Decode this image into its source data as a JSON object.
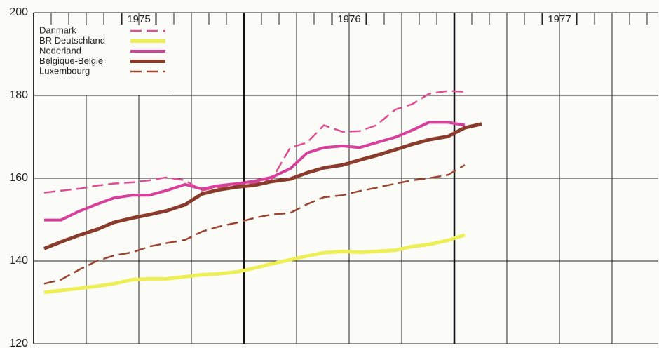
{
  "chart_data": {
    "type": "line",
    "x": [
      1975.05,
      1975.13,
      1975.22,
      1975.3,
      1975.38,
      1975.47,
      1975.55,
      1975.63,
      1975.72,
      1975.8,
      1975.88,
      1975.97,
      1976.05,
      1976.13,
      1976.22,
      1976.3,
      1976.38,
      1976.47,
      1976.55,
      1976.63,
      1976.72,
      1976.8,
      1976.88,
      1976.97,
      1977.05,
      1977.13
    ],
    "series": [
      {
        "name": "Danmark",
        "color": "#dc4f93",
        "dashed": true,
        "width": 2.5,
        "values": [
          156.5,
          157.0,
          157.5,
          158.2,
          158.7,
          159.0,
          159.5,
          160.2,
          159.5,
          157.0,
          157.9,
          158.3,
          158.8,
          159.5,
          167.4,
          168.6,
          172.8,
          171.2,
          171.4,
          172.8,
          176.6,
          177.9,
          180.4,
          181.1,
          180.9,
          null
        ]
      },
      {
        "name": "BR Deutschland",
        "color": "#eeee55",
        "dashed": false,
        "width": 5,
        "values": [
          132.4,
          132.9,
          133.4,
          133.9,
          134.5,
          135.5,
          135.7,
          135.7,
          136.2,
          136.7,
          136.9,
          137.4,
          138.3,
          139.3,
          140.3,
          141.2,
          142.0,
          142.3,
          142.1,
          142.3,
          142.6,
          143.5,
          144.0,
          145.0,
          146.3,
          null
        ]
      },
      {
        "name": "Nederland",
        "color": "#d6409b",
        "dashed": false,
        "width": 4,
        "values": [
          149.9,
          149.9,
          152.1,
          153.7,
          155.2,
          155.9,
          155.9,
          157.0,
          158.5,
          157.4,
          158.2,
          158.7,
          159.3,
          160.2,
          162.3,
          166.1,
          167.4,
          167.8,
          167.4,
          168.6,
          169.9,
          171.6,
          173.5,
          173.5,
          172.8,
          null
        ]
      },
      {
        "name": "Belgique-België",
        "color": "#8a3b2b",
        "dashed": false,
        "width": 5,
        "values": [
          143.0,
          144.6,
          146.3,
          147.6,
          149.3,
          150.4,
          151.2,
          152.1,
          153.6,
          156.2,
          157.2,
          157.9,
          158.3,
          159.2,
          159.8,
          161.3,
          162.5,
          163.2,
          164.4,
          165.5,
          166.9,
          168.2,
          169.3,
          170.1,
          172.2,
          173.1
        ]
      },
      {
        "name": "Luxembourg",
        "color": "#9c4632",
        "dashed": true,
        "width": 2.5,
        "values": [
          134.5,
          135.5,
          138.0,
          140.0,
          141.3,
          142.1,
          143.5,
          144.3,
          145.1,
          147.1,
          148.3,
          149.3,
          150.4,
          151.2,
          151.6,
          153.7,
          155.4,
          155.9,
          156.9,
          157.7,
          158.7,
          159.5,
          160.0,
          160.8,
          163.2,
          null
        ]
      }
    ],
    "xlim": [
      1975,
      1977.97
    ],
    "xticks": [
      {
        "value": 1975.5,
        "label": "1975"
      },
      {
        "value": 1976.5,
        "label": "1976"
      },
      {
        "value": 1977.5,
        "label": "1977"
      }
    ],
    "ylim": [
      120,
      200
    ],
    "yticks": [
      120,
      140,
      160,
      180,
      200
    ],
    "grid": true,
    "legend": "upper left"
  }
}
